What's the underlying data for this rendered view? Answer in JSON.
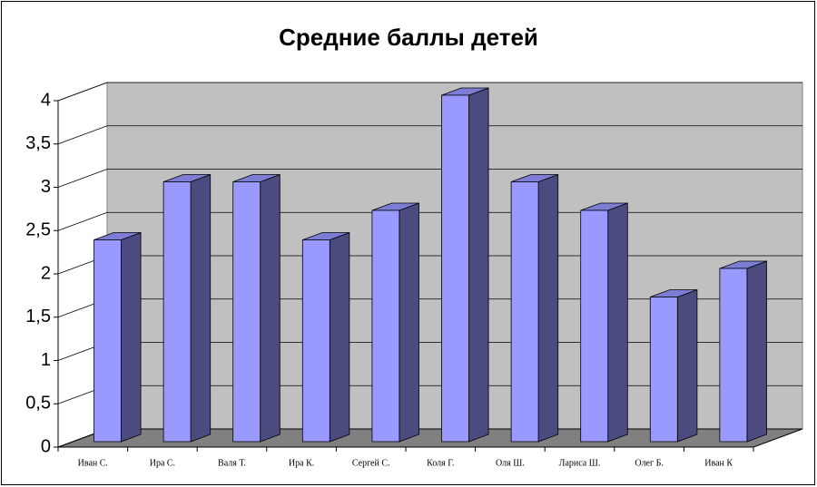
{
  "chart_data": {
    "type": "bar3d",
    "title": "Средние баллы детей",
    "categories": [
      "Иван С.",
      "Ира С.",
      "Валя Т.",
      "Ира К.",
      "Сергей С.",
      "Коля Г.",
      "Оля Ш.",
      "Лариса Ш.",
      "Олег Б.",
      "Иван К"
    ],
    "values": [
      2.33,
      3,
      3,
      2.33,
      2.67,
      4,
      3,
      2.67,
      1.67,
      2
    ],
    "color": "#9999ff",
    "ylim": [
      0,
      4
    ],
    "yticks": [
      0,
      {
        "value": 0.5,
        "label": "0,5"
      },
      1,
      {
        "value": 1.5,
        "label": "1,5"
      },
      2,
      {
        "value": 2.5,
        "label": "2,5"
      },
      3,
      {
        "value": 3.5,
        "label": "3,5"
      },
      4
    ],
    "grid": true
  }
}
